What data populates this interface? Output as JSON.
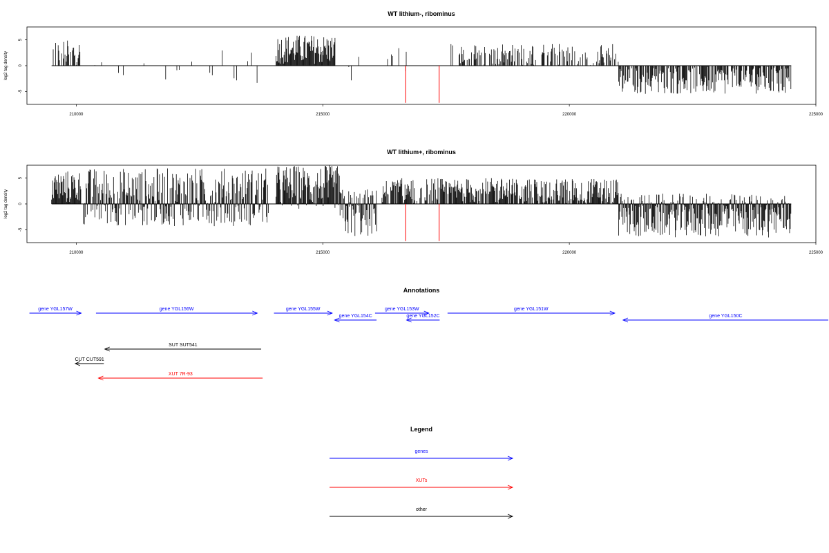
{
  "chart_data": [
    {
      "type": "bar",
      "title": "WT lithium-, ribominus",
      "ylabel": "log2 tag density",
      "xlabel": "",
      "xlim": [
        209000,
        225000
      ],
      "ylim": [
        -7.5,
        7.5
      ],
      "x_ticks": [
        210000,
        215000,
        220000,
        225000
      ],
      "y_ticks": [
        -5,
        0,
        5
      ],
      "data_start": 209500,
      "data_end": 224500,
      "bar_color": "#000000",
      "highlight_color": "#ff0000",
      "segments": [
        {
          "x": [
            209520,
            210100
          ],
          "ymin": 0,
          "ymax": 5,
          "dens": 0.55
        },
        {
          "x": [
            210350,
            213800
          ],
          "ymin": -3.5,
          "ymax": 3,
          "dens": 0.08
        },
        {
          "x": [
            214050,
            215250
          ],
          "ymin": 0.3,
          "ymax": 6,
          "dens": 1.0
        },
        {
          "x": [
            215250,
            216100
          ],
          "ymin": -5,
          "ymax": 2,
          "dens": 0.12
        },
        {
          "x": [
            216200,
            216850
          ],
          "ymin": -1.5,
          "ymax": 3.8,
          "dens": 0.2
        },
        {
          "x": [
            217600,
            221000
          ],
          "ymin": 0,
          "ymax": 4.3,
          "dens": 0.5
        },
        {
          "x": [
            221000,
            224500
          ],
          "ymin": -5.5,
          "ymax": 0,
          "dens": 0.75
        }
      ],
      "highlights": [
        {
          "x": 216680,
          "y": -7.2
        },
        {
          "x": 217360,
          "y": -7.2
        }
      ]
    },
    {
      "type": "bar",
      "title": "WT lithium+, ribominus",
      "ylabel": "log2 tag density",
      "xlabel": "",
      "xlim": [
        209000,
        225000
      ],
      "ylim": [
        -7.5,
        7.5
      ],
      "x_ticks": [
        210000,
        215000,
        220000,
        225000
      ],
      "y_ticks": [
        -5,
        0,
        5
      ],
      "data_start": 209500,
      "data_end": 224500,
      "bar_color": "#000000",
      "highlight_color": "#ff0000",
      "segments": [
        {
          "x": [
            209500,
            210100
          ],
          "ymin": 0,
          "ymax": 6.5,
          "dens": 1.0
        },
        {
          "x": [
            210150,
            213900
          ],
          "ymin": -4.3,
          "ymax": 7,
          "dens": 1.0
        },
        {
          "x": [
            214050,
            215350
          ],
          "ymin": -1,
          "ymax": 7.5,
          "dens": 1.0
        },
        {
          "x": [
            215350,
            216100
          ],
          "ymin": -6.5,
          "ymax": 3,
          "dens": 1.0
        },
        {
          "x": [
            216200,
            221000
          ],
          "ymin": 0,
          "ymax": 5,
          "dens": 0.8
        },
        {
          "x": [
            221000,
            224500
          ],
          "ymin": -6.5,
          "ymax": 2,
          "dens": 1.0
        }
      ],
      "highlights": [
        {
          "x": 216680,
          "y": -7.2
        },
        {
          "x": 217360,
          "y": -7.2
        }
      ]
    }
  ],
  "annotations": {
    "title": "Annotations",
    "genes_color": "#0000ff",
    "xuts_color": "#ff0000",
    "other_color": "#000000",
    "items": [
      {
        "label": "gene YGL157W",
        "start": 209050,
        "end": 210100,
        "dir": "right",
        "row": 0,
        "kind": "gene"
      },
      {
        "label": "gene YGL156W",
        "start": 210400,
        "end": 213670,
        "dir": "right",
        "row": 0,
        "kind": "gene"
      },
      {
        "label": "gene YGL155W",
        "start": 214010,
        "end": 215190,
        "dir": "right",
        "row": 0,
        "kind": "gene"
      },
      {
        "label": "gene YGL154C",
        "start": 215240,
        "end": 216090,
        "dir": "left",
        "row": 1,
        "kind": "gene"
      },
      {
        "label": "gene YGL153W",
        "start": 216060,
        "end": 217150,
        "dir": "right",
        "row": 0,
        "kind": "gene"
      },
      {
        "label": "gene YGL152C",
        "start": 216700,
        "end": 217370,
        "dir": "left",
        "row": 1,
        "kind": "gene"
      },
      {
        "label": "gene YGL151W",
        "start": 217530,
        "end": 220920,
        "dir": "right",
        "row": 0,
        "kind": "gene"
      },
      {
        "label": "gene YGL150C",
        "start": 221090,
        "end": 225300,
        "dir": "left",
        "row": 1,
        "kind": "gene"
      },
      {
        "label": "SUT SUT541",
        "start": 210580,
        "end": 213750,
        "dir": "left",
        "row": 2,
        "kind": "other"
      },
      {
        "label": "CUT CUT591",
        "start": 209980,
        "end": 210560,
        "dir": "left",
        "row": 3,
        "kind": "other"
      },
      {
        "label": "XUT 7R-93",
        "start": 210450,
        "end": 213780,
        "dir": "left",
        "row": 4,
        "kind": "xut"
      }
    ]
  },
  "legend": {
    "title": "Legend",
    "items": [
      {
        "label": "genes",
        "color": "#0000ff"
      },
      {
        "label": "XUTs",
        "color": "#ff0000"
      },
      {
        "label": "other",
        "color": "#000000"
      }
    ]
  }
}
